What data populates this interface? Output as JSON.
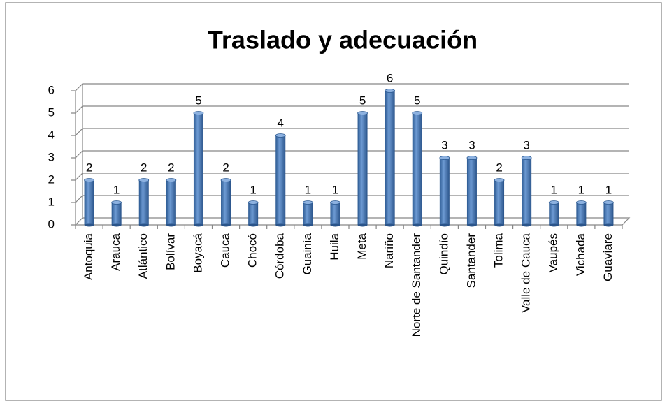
{
  "chart_data": {
    "type": "bar",
    "title": "Traslado y adecuación",
    "categories": [
      "Antoquia",
      "Arauca",
      "Atlántico",
      "Bolívar",
      "Boyacá",
      "Cauca",
      "Chocó",
      "Córdoba",
      "Guainía",
      "Huila",
      "Meta",
      "Nariño",
      "Norte de Santander",
      "Quindío",
      "Santander",
      "Tolima",
      "Valle de Cauca",
      "Vaupés",
      "Vichada",
      "Guaviare"
    ],
    "values": [
      2,
      1,
      2,
      2,
      5,
      2,
      1,
      4,
      1,
      1,
      5,
      6,
      5,
      3,
      3,
      2,
      3,
      1,
      1,
      1
    ],
    "color": "#4a7ebb",
    "ylim": [
      0,
      6
    ],
    "yticks": [
      0,
      1,
      2,
      3,
      4,
      5,
      6
    ],
    "grid": true,
    "data_labels": true
  }
}
